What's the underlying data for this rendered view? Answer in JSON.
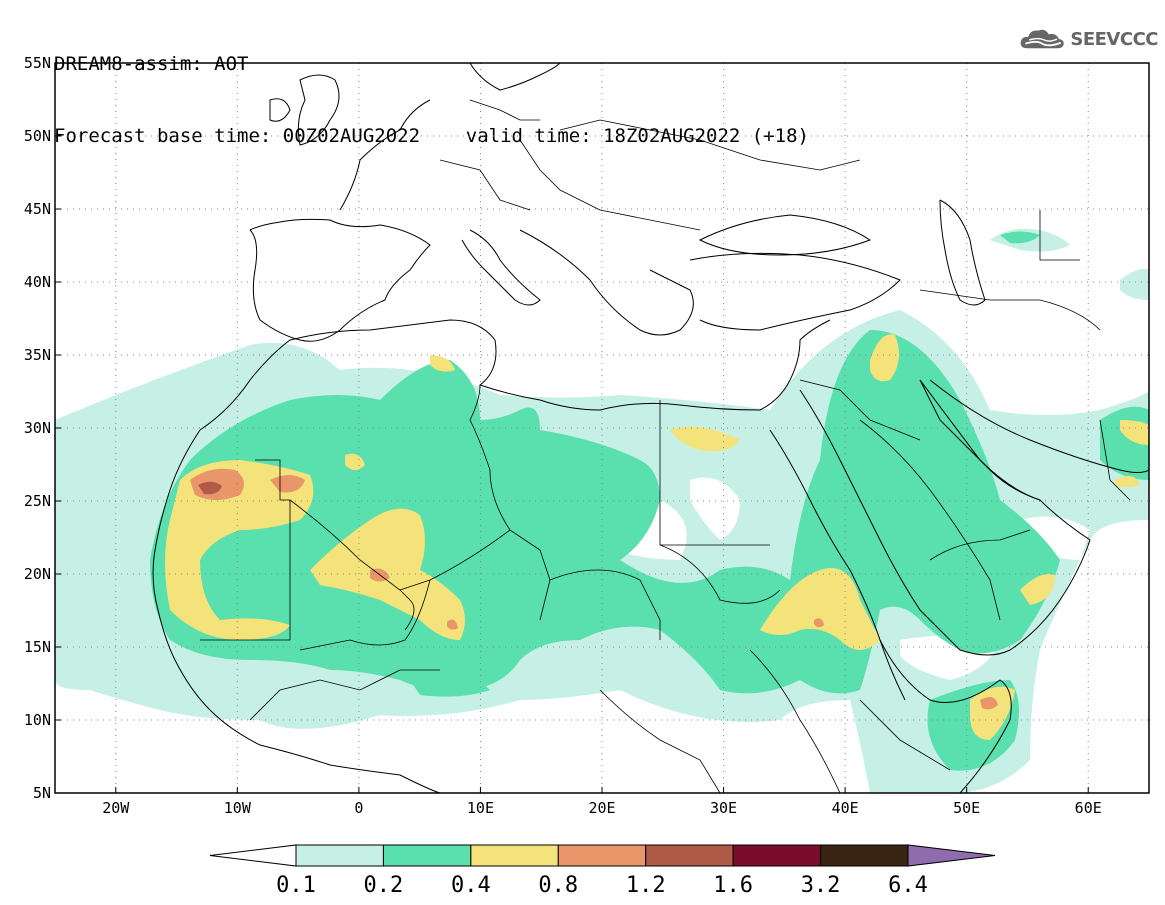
{
  "header": {
    "line1": "DREAM8-assim: AOT",
    "line2": "Forecast base time: 00Z02AUG2022    valid time: 18Z02AUG2022 (+18)"
  },
  "logo": {
    "text": "SEEVCCC",
    "icon": "cloud-icon",
    "color": "#666666"
  },
  "map": {
    "lat_labels": [
      "55N",
      "50N",
      "45N",
      "40N",
      "35N",
      "30N",
      "25N",
      "20N",
      "15N",
      "10N",
      "5N"
    ],
    "lat_values": [
      55,
      50,
      45,
      40,
      35,
      30,
      25,
      20,
      15,
      10,
      5
    ],
    "lon_labels": [
      "20W",
      "10W",
      "0",
      "10E",
      "20E",
      "30E",
      "40E",
      "50E",
      "60E"
    ],
    "lon_values": [
      -20,
      -10,
      0,
      10,
      20,
      30,
      40,
      50,
      60
    ],
    "lon_range": [
      -25,
      65
    ],
    "lat_range": [
      5,
      55
    ]
  },
  "colorbar": {
    "labels": [
      "0.1",
      "0.2",
      "0.4",
      "0.8",
      "1.2",
      "1.6",
      "3.2",
      "6.4"
    ],
    "colors": [
      "#c6f0e6",
      "#5adfae",
      "#f4e37a",
      "#e8966a",
      "#b05a48",
      "#7a0e2a",
      "#3a2414",
      "#8e6cae"
    ]
  },
  "palette": {
    "c1": "#c6f0e6",
    "c2": "#5adfae",
    "c3": "#f4e37a",
    "c4": "#e8966a",
    "c5": "#b05a48"
  }
}
